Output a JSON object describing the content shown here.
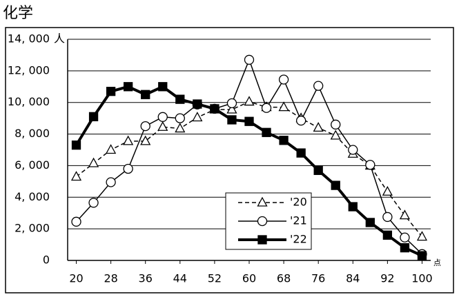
{
  "chart_data": {
    "type": "line",
    "title": "化学",
    "y_unit": "人",
    "x_unit": "点",
    "x": [
      20,
      24,
      28,
      32,
      36,
      40,
      44,
      48,
      52,
      56,
      60,
      64,
      68,
      72,
      76,
      80,
      84,
      88,
      92,
      96,
      100
    ],
    "xlim": [
      18,
      102
    ],
    "xticks": [
      20,
      28,
      36,
      44,
      52,
      60,
      68,
      76,
      84,
      92,
      100
    ],
    "ylim": [
      0,
      14000
    ],
    "yticks": [
      0,
      {
        "value": 2000,
        "label": "2, 000"
      },
      {
        "value": 4000,
        "label": "4, 000"
      },
      {
        "value": 6000,
        "label": "6, 000"
      },
      {
        "value": 8000,
        "label": "8, 000"
      },
      {
        "value": 10000,
        "label": "10, 000"
      },
      {
        "value": 12000,
        "label": "12, 000"
      },
      {
        "value": 14000,
        "label": "14, 000"
      }
    ],
    "grid": true,
    "series": [
      {
        "name": "'20",
        "color": "#000000",
        "marker": "triangle",
        "line_style": "dashed",
        "line_width": 1.5,
        "values": [
          5300,
          6150,
          7000,
          7550,
          7550,
          8450,
          8350,
          9050,
          9550,
          9550,
          10050,
          9700,
          9700,
          9000,
          8400,
          7900,
          6750,
          6000,
          4350,
          2850,
          1500
        ]
      },
      {
        "name": "'21",
        "color": "#000000",
        "marker": "circle",
        "line_style": "solid",
        "line_width": 1.5,
        "values": [
          2450,
          3650,
          4950,
          5800,
          8500,
          9080,
          9000,
          9870,
          9600,
          9950,
          12700,
          9650,
          11450,
          8850,
          11050,
          8600,
          7000,
          6050,
          2750,
          1450,
          400
        ]
      },
      {
        "name": "'22",
        "color": "#000000",
        "marker": "square",
        "line_style": "solid",
        "line_width": 4,
        "values": [
          7300,
          9100,
          10700,
          11000,
          10500,
          11000,
          10200,
          9900,
          9600,
          8900,
          8800,
          8100,
          7600,
          6800,
          5700,
          4750,
          3400,
          2400,
          1600,
          800,
          300
        ]
      }
    ]
  }
}
